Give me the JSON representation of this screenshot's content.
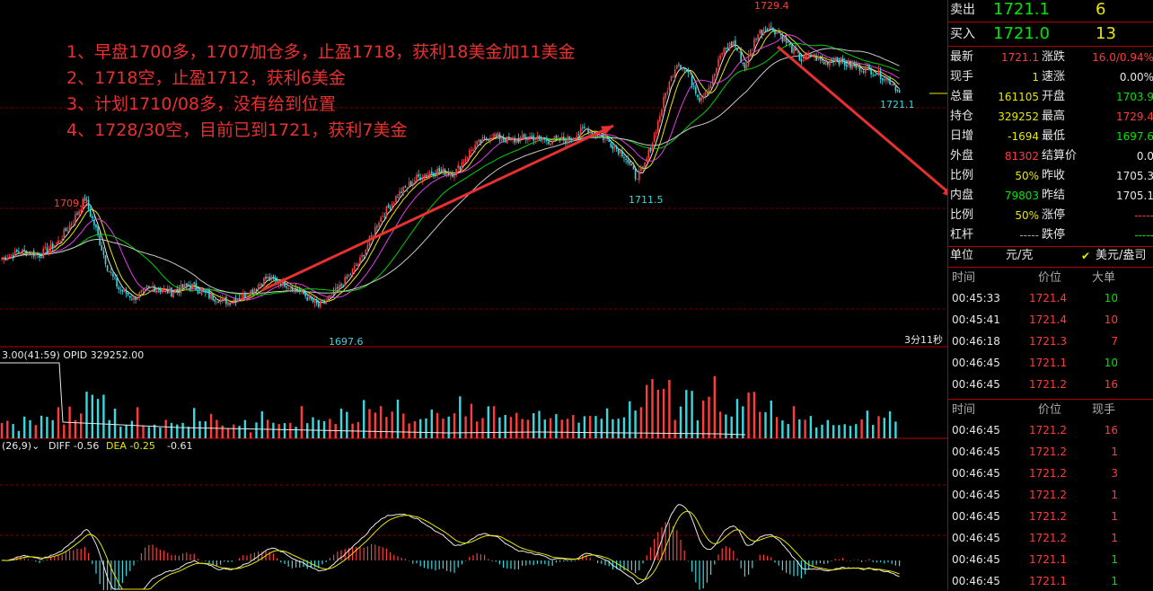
{
  "chart_data": {
    "type": "candlestick",
    "title": "",
    "annotations": [
      "1、早盘1700多，1707加仓多，止盈1718，获利18美金加11美金",
      "2、1718空，止盈1712，获利6美金",
      "3、计划1710/08多，没有给到位置",
      "4、1728/30空，目前已到1721，获利7美金"
    ],
    "price_labels": {
      "high_left": "1709.8",
      "low_left": "1697.6",
      "low_mid": "1711.5",
      "high_peak": "1729.4",
      "last": "1721.1"
    },
    "timer_text": "3分11秒",
    "ylim": [
      1694,
      1731
    ],
    "keypoints": [
      [
        0,
        1703.4
      ],
      [
        10,
        1704.2
      ],
      [
        20,
        1703.8
      ],
      [
        30,
        1705.2
      ],
      [
        40,
        1708.2
      ],
      [
        44,
        1709.8
      ],
      [
        50,
        1706.5
      ],
      [
        56,
        1702.5
      ],
      [
        62,
        1700.2
      ],
      [
        70,
        1699.2
      ],
      [
        80,
        1700.4
      ],
      [
        90,
        1699.8
      ],
      [
        100,
        1700.6
      ],
      [
        110,
        1699.4
      ],
      [
        120,
        1698.8
      ],
      [
        130,
        1699.6
      ],
      [
        140,
        1701.3
      ],
      [
        150,
        1700.8
      ],
      [
        160,
        1699.6
      ],
      [
        168,
        1698.3
      ],
      [
        175,
        1699.4
      ],
      [
        182,
        1701.0
      ],
      [
        190,
        1703.2
      ],
      [
        200,
        1707.5
      ],
      [
        210,
        1710.2
      ],
      [
        220,
        1712.0
      ],
      [
        230,
        1712.8
      ],
      [
        240,
        1712.5
      ],
      [
        250,
        1715.3
      ],
      [
        260,
        1716.6
      ],
      [
        270,
        1715.9
      ],
      [
        280,
        1716.4
      ],
      [
        290,
        1716.0
      ],
      [
        300,
        1716.1
      ],
      [
        310,
        1717.3
      ],
      [
        320,
        1716.2
      ],
      [
        330,
        1714.5
      ],
      [
        336,
        1712.2
      ],
      [
        340,
        1712.8
      ],
      [
        346,
        1716.5
      ],
      [
        352,
        1721.0
      ],
      [
        358,
        1724.4
      ],
      [
        364,
        1723.2
      ],
      [
        370,
        1720.5
      ],
      [
        376,
        1722.0
      ],
      [
        382,
        1725.5
      ],
      [
        388,
        1726.5
      ],
      [
        394,
        1723.8
      ],
      [
        400,
        1727.2
      ],
      [
        406,
        1728.2
      ],
      [
        412,
        1727.5
      ],
      [
        418,
        1726.0
      ],
      [
        424,
        1724.6
      ],
      [
        430,
        1725.1
      ],
      [
        436,
        1724.3
      ],
      [
        442,
        1724.8
      ],
      [
        448,
        1724.1
      ],
      [
        454,
        1723.8
      ],
      [
        460,
        1723.6
      ],
      [
        466,
        1723.0
      ],
      [
        472,
        1722.2
      ],
      [
        476,
        1721.1
      ]
    ],
    "volume_header": "3.00(41:59)  OPID 329252.00",
    "macd_header": {
      "params": "(26,9)",
      "diff": "DIFF -0.56",
      "dea": "DEA -0.25",
      "macd": "-0.61"
    },
    "colors": {
      "up": "#ff3c3c",
      "down": "#38d8e0",
      "ma1": "#e8e8e8",
      "ma2": "#e6e600",
      "ma3": "#e040e0",
      "ma4": "#00d000",
      "ma5": "#c8c8c8",
      "arrow": "#e83030",
      "text": "#e83030"
    }
  },
  "panel": {
    "sell": {
      "label": "卖出",
      "price": "1721.1",
      "vol": "6"
    },
    "buy": {
      "label": "买入",
      "price": "1721.0",
      "vol": "13"
    },
    "stats": [
      {
        "l1": "最新",
        "v1": "1721.1",
        "l2": "涨跌",
        "v2": "16.0/0.94%"
      },
      {
        "l1": "现手",
        "v1": "1",
        "l2": "速涨",
        "v2": "0.00%"
      },
      {
        "l1": "总量",
        "v1": "161105",
        "l2": "开盘",
        "v2": "1703.9"
      },
      {
        "l1": "持仓",
        "v1": "329252",
        "l2": "最高",
        "v2": "1729.4"
      },
      {
        "l1": "日增",
        "v1": "-1694",
        "l2": "最低",
        "v2": "1697.6"
      },
      {
        "l1": "外盘",
        "v1": "81302",
        "l2": "结算价",
        "v2": "0.0"
      },
      {
        "l1": "比例",
        "v1": "50%",
        "l2": "昨收",
        "v2": "1705.3"
      },
      {
        "l1": "内盘",
        "v1": "79803",
        "l2": "昨结",
        "v2": "1705.1"
      },
      {
        "l1": "比例",
        "v1": "50%",
        "l2": "涨停",
        "v2": "-----"
      },
      {
        "l1": "杠杆",
        "v1": "-----",
        "l2": "跌停",
        "v2": "-----"
      }
    ],
    "unit": {
      "label": "单位",
      "value": "元/克",
      "option": "美元/盎司"
    },
    "big_trades": {
      "headers": {
        "time": "时间",
        "price": "价位",
        "vol": "大单"
      },
      "rows": [
        {
          "time": "00:45:33",
          "price": "1721.4",
          "vol": "10",
          "vc": "grn"
        },
        {
          "time": "00:45:41",
          "price": "1721.4",
          "vol": "10",
          "vc": "red"
        },
        {
          "time": "00:46:18",
          "price": "1721.3",
          "vol": "7",
          "vc": "red"
        },
        {
          "time": "00:46:45",
          "price": "1721.1",
          "vol": "10",
          "vc": "grn"
        },
        {
          "time": "00:46:45",
          "price": "1721.2",
          "vol": "16",
          "vc": "red"
        }
      ]
    },
    "ticks": {
      "headers": {
        "time": "时间",
        "price": "价位",
        "vol": "现手"
      },
      "rows": [
        {
          "time": "00:46:45",
          "price": "1721.2",
          "vol": "16",
          "vc": "red"
        },
        {
          "time": "00:46:45",
          "price": "1721.2",
          "vol": "1",
          "vc": "red"
        },
        {
          "time": "00:46:45",
          "price": "1721.2",
          "vol": "3",
          "vc": "red"
        },
        {
          "time": "00:46:45",
          "price": "1721.2",
          "vol": "1",
          "vc": "red"
        },
        {
          "time": "00:46:45",
          "price": "1721.2",
          "vol": "1",
          "vc": "red"
        },
        {
          "time": "00:46:45",
          "price": "1721.2",
          "vol": "1",
          "vc": "red"
        },
        {
          "time": "00:46:45",
          "price": "1721.1",
          "vol": "1",
          "vc": "grn"
        },
        {
          "time": "00:46:45",
          "price": "1721.1",
          "vol": "1",
          "vc": "grn"
        }
      ]
    }
  }
}
